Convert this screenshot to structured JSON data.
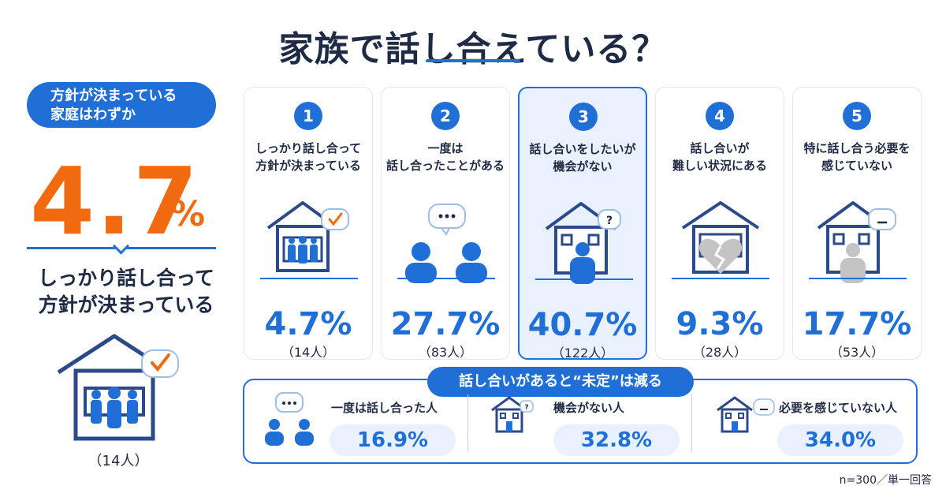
{
  "title": "家族で話し合えている？",
  "highlight": {
    "pill_line1": "方針が決まっている",
    "pill_line2": "家庭はわずか",
    "value": "4.7",
    "unit": "%",
    "desc_line1": "しっかり話し合って",
    "desc_line2": "方針が決まっている",
    "count": "（14人）"
  },
  "chart_data": {
    "type": "bar",
    "categories": [
      "しっかり話し合って方針が決まっている",
      "一度は話し合ったことがある",
      "話し合いをしたいが機会がない",
      "話し合いが難しい状況にある",
      "特に話し合う必要を感じていない"
    ],
    "values": [
      4.7,
      27.7,
      40.7,
      9.3,
      17.7
    ],
    "counts": [
      14,
      83,
      122,
      28,
      53
    ],
    "unit": "%"
  },
  "cards": [
    {
      "num": "1",
      "label1": "しっかり話し合って",
      "label2": "方針が決まっている",
      "pct": "4.7%",
      "cnt": "（14人）",
      "icon": "house-check-icon"
    },
    {
      "num": "2",
      "label1": "一度は",
      "label2": "話し合ったことがある",
      "pct": "27.7%",
      "cnt": "（83人）",
      "icon": "two-people-chat-icon"
    },
    {
      "num": "3",
      "label1": "話し合いをしたいが",
      "label2": "機会がない",
      "pct": "40.7%",
      "cnt": "（122人）",
      "icon": "house-question-icon"
    },
    {
      "num": "4",
      "label1": "話し合いが",
      "label2": "難しい状況にある",
      "pct": "9.3%",
      "cnt": "（28人）",
      "icon": "house-broken-heart-icon"
    },
    {
      "num": "5",
      "label1": "特に話し合う必要を",
      "label2": "感じていない",
      "pct": "17.7%",
      "cnt": "（53人）",
      "icon": "house-dash-icon"
    }
  ],
  "bottom": {
    "pill": "話し合いがあると“未定”は減る",
    "items": [
      {
        "label": "一度は話し合った人",
        "value": "16.9%",
        "icon": "two-people-chat-icon"
      },
      {
        "label": "機会がない人",
        "value": "32.8%",
        "icon": "house-question-icon"
      },
      {
        "label": "必要を感じていない人",
        "value": "34.0%",
        "icon": "house-dash-icon"
      }
    ]
  },
  "footnote": "n=300／単一回答",
  "colors": {
    "accent": "#1f6fd6",
    "orange": "#f26a10",
    "navy": "#1f2a44",
    "gray": "#c4c4c4"
  }
}
